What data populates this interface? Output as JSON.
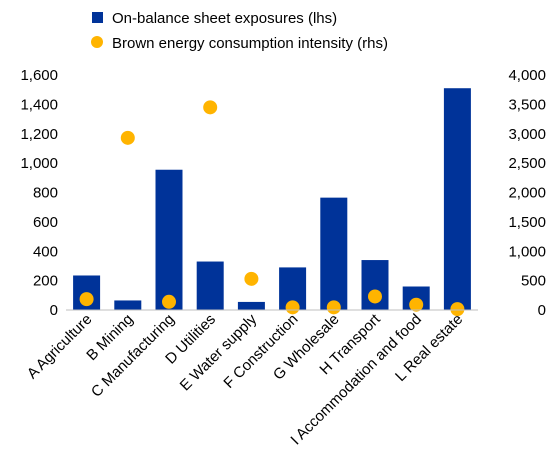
{
  "chart_data": {
    "type": "bar",
    "categories": [
      "A Agriculture",
      "B Mining",
      "C Manufacturing",
      "D Utilities",
      "E Water supply",
      "F Construction",
      "G Wholesale",
      "H Transport",
      "I Accommodation and food",
      "L Real estate"
    ],
    "series": [
      {
        "name": "On-balance sheet exposures (lhs)",
        "kind": "bar",
        "axis": "left",
        "color": "#003399",
        "values": [
          235,
          65,
          955,
          330,
          55,
          290,
          765,
          340,
          160,
          1510
        ]
      },
      {
        "name": "Brown energy consumption intensity (rhs)",
        "kind": "scatter",
        "axis": "right",
        "color": "#FFB400",
        "values": [
          185,
          2930,
          140,
          3450,
          530,
          45,
          45,
          230,
          90,
          15
        ]
      }
    ],
    "ylim_left": [
      0,
      1600
    ],
    "yticks_left": [
      "0",
      "200",
      "400",
      "600",
      "800",
      "1,000",
      "1,200",
      "1,400",
      "1,600"
    ],
    "ylim_right": [
      0,
      4000
    ],
    "yticks_right": [
      "0",
      "500",
      "1,000",
      "1,500",
      "2,000",
      "2,500",
      "3,000",
      "3,500",
      "4,000"
    ],
    "grid": false,
    "legend_position": "top-left"
  }
}
